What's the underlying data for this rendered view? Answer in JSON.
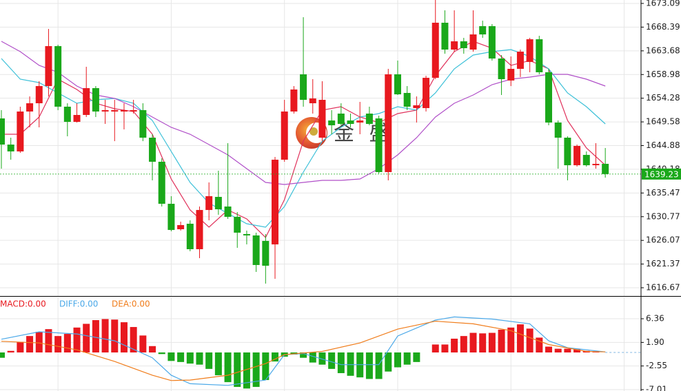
{
  "chart_data": [
    {
      "type": "candlestick",
      "ylim": [
        1615.03,
        1673.77
      ],
      "yticks": [
        1616.67,
        1621.37,
        1626.07,
        1630.77,
        1635.47,
        1640.18,
        1644.88,
        1649.58,
        1654.28,
        1658.98,
        1663.68,
        1668.39,
        1673.09
      ],
      "grid": true,
      "up_color": "#e8191f",
      "down_color": "#1aa81a",
      "open": [
        1650.27,
        1645.08,
        1643.72,
        1651.64,
        1653.28,
        1656.69,
        1664.62,
        1652.6,
        1649.59,
        1650.96,
        1656.28,
        1651.64,
        1651.64,
        1651.64,
        1651.64,
        1651.91,
        1646.45,
        1641.67,
        1633.33,
        1628.28,
        1629.37,
        1624.32,
        1632.1,
        1634.7,
        1632.79,
        1630.74,
        1627.32,
        1627.05,
        1625.96,
        1625.27,
        1642.08,
        1651.64,
        1659.02,
        1653.28,
        1646.45,
        1649.86,
        1651.23,
        1649.86,
        1649.45,
        1651.23,
        1650.27,
        1639.62,
        1659.02,
        1655.33,
        1652.32,
        1652.32,
        1658.33,
        1669.26,
        1663.93,
        1665.57,
        1663.93,
        1668.58,
        1668.58,
        1662.16,
        1657.79,
        1660.11,
        1661.48,
        1665.98,
        1659.43,
        1649.45,
        1646.45,
        1640.98,
        1643.03,
        1640.98,
        1641.26
      ],
      "high": [
        1651.91,
        1646.45,
        1652.6,
        1654.64,
        1657.65,
        1668.03,
        1664.89,
        1653.28,
        1653.28,
        1660.52,
        1656.69,
        1653.96,
        1653.96,
        1653.28,
        1653.96,
        1653.28,
        1647.13,
        1642.35,
        1634.84,
        1629.78,
        1630.05,
        1632.79,
        1637.57,
        1639.89,
        1645.36,
        1631.69,
        1628.01,
        1627.6,
        1627.32,
        1642.62,
        1653.96,
        1656.69,
        1670.35,
        1658.06,
        1657.65,
        1651.91,
        1653.28,
        1651.23,
        1653.55,
        1652.6,
        1650.82,
        1660.11,
        1661.75,
        1656.69,
        1654.64,
        1658.74,
        1673.77,
        1671.72,
        1671.72,
        1666.26,
        1671.72,
        1669.67,
        1668.99,
        1662.84,
        1662.57,
        1663.93,
        1666.26,
        1666.67,
        1660.11,
        1649.86,
        1646.72,
        1645.08,
        1643.72,
        1645.36,
        1644.4
      ],
      "low": [
        1640.3,
        1642.08,
        1643.44,
        1648.5,
        1648.5,
        1654.64,
        1651.91,
        1646.72,
        1649.45,
        1650.55,
        1650.55,
        1649.18,
        1645.76,
        1648.09,
        1651.23,
        1645.76,
        1637.98,
        1632.79,
        1627.87,
        1628.01,
        1623.91,
        1622.54,
        1630.05,
        1631.15,
        1630.33,
        1624.59,
        1625.27,
        1619.81,
        1617.49,
        1618.44,
        1641.67,
        1651.23,
        1652.6,
        1651.23,
        1645.76,
        1647.13,
        1648.91,
        1648.5,
        1647.13,
        1648.91,
        1639.34,
        1637.98,
        1654.92,
        1651.91,
        1649.45,
        1651.64,
        1658.06,
        1663.11,
        1663.52,
        1663.11,
        1663.52,
        1666.26,
        1661.75,
        1654.92,
        1656.69,
        1658.47,
        1659.43,
        1659.02,
        1648.91,
        1640.3,
        1637.98,
        1640.71,
        1640.71,
        1640.3,
        1638.52
      ],
      "close": [
        1645.08,
        1643.72,
        1651.64,
        1653.28,
        1656.69,
        1664.62,
        1652.6,
        1649.59,
        1650.96,
        1656.28,
        1651.64,
        1651.91,
        1651.91,
        1651.91,
        1651.91,
        1646.45,
        1641.67,
        1633.33,
        1628.14,
        1629.1,
        1624.32,
        1632.1,
        1634.84,
        1632.24,
        1630.74,
        1627.6,
        1627.05,
        1621.18,
        1621.04,
        1642.08,
        1651.64,
        1656.01,
        1653.96,
        1654.23,
        1653.96,
        1648.91,
        1649.18,
        1649.18,
        1649.86,
        1649.18,
        1639.62,
        1659.02,
        1655.05,
        1652.6,
        1652.87,
        1658.33,
        1669.26,
        1663.93,
        1665.57,
        1664.21,
        1666.94,
        1666.94,
        1662.16,
        1658.06,
        1660.11,
        1663.52,
        1665.98,
        1659.43,
        1649.45,
        1646.45,
        1640.98,
        1644.81,
        1640.98,
        1641.26,
        1639.23
      ],
      "lines": [
        {
          "color": "#e0305a",
          "x": [
            0,
            2,
            4,
            6,
            8,
            10,
            12,
            14,
            16,
            18,
            20,
            22,
            24,
            26,
            28,
            30,
            32,
            34,
            36,
            38,
            40,
            42,
            44,
            46,
            48,
            50,
            52,
            54,
            56,
            58,
            60,
            62,
            64
          ],
          "values": [
            1647.13,
            1647.13,
            1650.55,
            1658.06,
            1656.01,
            1653.28,
            1652.19,
            1651.64,
            1647.13,
            1638.25,
            1632.1,
            1628.69,
            1632.1,
            1630.33,
            1626.64,
            1634.15,
            1645.76,
            1651.91,
            1652.6,
            1650.55,
            1649.45,
            1651.23,
            1651.91,
            1658.74,
            1663.52,
            1665.57,
            1664.21,
            1660.79,
            1661.75,
            1660.11,
            1649.86,
            1644.4,
            1640.98
          ]
        },
        {
          "color": "#3cc0d8",
          "x": [
            0,
            2,
            4,
            6,
            8,
            10,
            12,
            14,
            16,
            18,
            20,
            22,
            24,
            26,
            28,
            30,
            32,
            34,
            36,
            38,
            40,
            42,
            44,
            46,
            48,
            50,
            52,
            54,
            56,
            58,
            60,
            62,
            64
          ],
          "values": [
            1662.16,
            1658.06,
            1657.38,
            1655.33,
            1653.28,
            1653.96,
            1654.23,
            1653.28,
            1649.86,
            1643.72,
            1637.57,
            1633.47,
            1631.42,
            1629.37,
            1628.69,
            1632.79,
            1639.62,
            1645.76,
            1648.5,
            1650.55,
            1651.23,
            1652.6,
            1651.91,
            1655.33,
            1660.11,
            1662.84,
            1663.52,
            1663.93,
            1662.57,
            1660.11,
            1655.33,
            1652.6,
            1649.18
          ]
        },
        {
          "color": "#b04fc8",
          "x": [
            0,
            2,
            4,
            6,
            8,
            10,
            12,
            14,
            16,
            18,
            20,
            22,
            24,
            26,
            28,
            30,
            32,
            34,
            36,
            38,
            40,
            42,
            44,
            46,
            48,
            50,
            52,
            54,
            56,
            58,
            60,
            62,
            64
          ],
          "values": [
            1665.57,
            1663.52,
            1660.79,
            1659.43,
            1656.69,
            1654.92,
            1654.23,
            1652.6,
            1650.55,
            1648.5,
            1647.13,
            1645.08,
            1643.03,
            1640.3,
            1637.57,
            1637.16,
            1637.57,
            1637.98,
            1637.98,
            1638.25,
            1640.3,
            1643.03,
            1646.45,
            1650.55,
            1653.28,
            1654.92,
            1656.97,
            1658.06,
            1658.47,
            1659.02,
            1659.02,
            1658.06,
            1656.69
          ]
        }
      ],
      "last_price": 1639.23,
      "watermark": "金 盛"
    },
    {
      "type": "macd",
      "ylim": [
        -7.27,
        10.39
      ],
      "yticks": [
        -7.01,
        -2.55,
        {
          "value": 1.9,
          "label": "1.90"
        },
        6.36
      ],
      "bars": {
        "name": "MACD:0.00",
        "color": "#e8191f",
        "down_color": "#1aa81a",
        "values": [
          -1.0,
          0.3,
          2.0,
          3.1,
          3.9,
          4.4,
          3.1,
          3.5,
          4.7,
          5.4,
          6.1,
          6.3,
          6.2,
          5.7,
          4.8,
          3.2,
          1.2,
          -0.3,
          -1.6,
          -1.8,
          -2.1,
          -2.3,
          -3.1,
          -4.3,
          -5.6,
          -6.5,
          -6.8,
          -6.5,
          -5.2,
          -1.7,
          -0.8,
          -0.4,
          -1.0,
          -1.9,
          -2.3,
          -3.1,
          -3.9,
          -4.4,
          -4.7,
          -5.0,
          -5.0,
          -3.6,
          -2.8,
          -2.3,
          -1.8,
          0,
          1.5,
          1.5,
          2.6,
          3.1,
          3.7,
          3.6,
          3.7,
          4.3,
          4.7,
          5.3,
          4.5,
          2.8,
          1.1,
          0.7,
          0.7,
          0.6,
          0.3,
          0.1,
          0
        ]
      },
      "lines": [
        {
          "name": "DIFF:0.00",
          "color": "#4aa8e8",
          "x": [
            0,
            4,
            8,
            12,
            16,
            18,
            20,
            24,
            28,
            30,
            32,
            36,
            40,
            42,
            46,
            48,
            52,
            56,
            58,
            60,
            64
          ],
          "values": [
            2.5,
            3.9,
            3.5,
            2.2,
            -1.0,
            -4.3,
            -5.9,
            -6.2,
            -5.2,
            -0.4,
            -0.2,
            -2.3,
            -2.3,
            3.1,
            6.1,
            6.7,
            6.3,
            5.4,
            2.2,
            0.9,
            0.1
          ]
        },
        {
          "name": "DEA:0.00",
          "color": "#f07c1a",
          "x": [
            0,
            4,
            8,
            12,
            16,
            18,
            20,
            24,
            28,
            30,
            34,
            38,
            42,
            46,
            50,
            54,
            58,
            62,
            64
          ],
          "values": [
            2.1,
            1.8,
            0.5,
            -1.7,
            -4.3,
            -5.3,
            -5.2,
            -4.3,
            -2.1,
            -0.4,
            0.2,
            1.8,
            4.4,
            5.9,
            5.4,
            4.1,
            1.5,
            0.2,
            0.1
          ]
        }
      ]
    }
  ]
}
